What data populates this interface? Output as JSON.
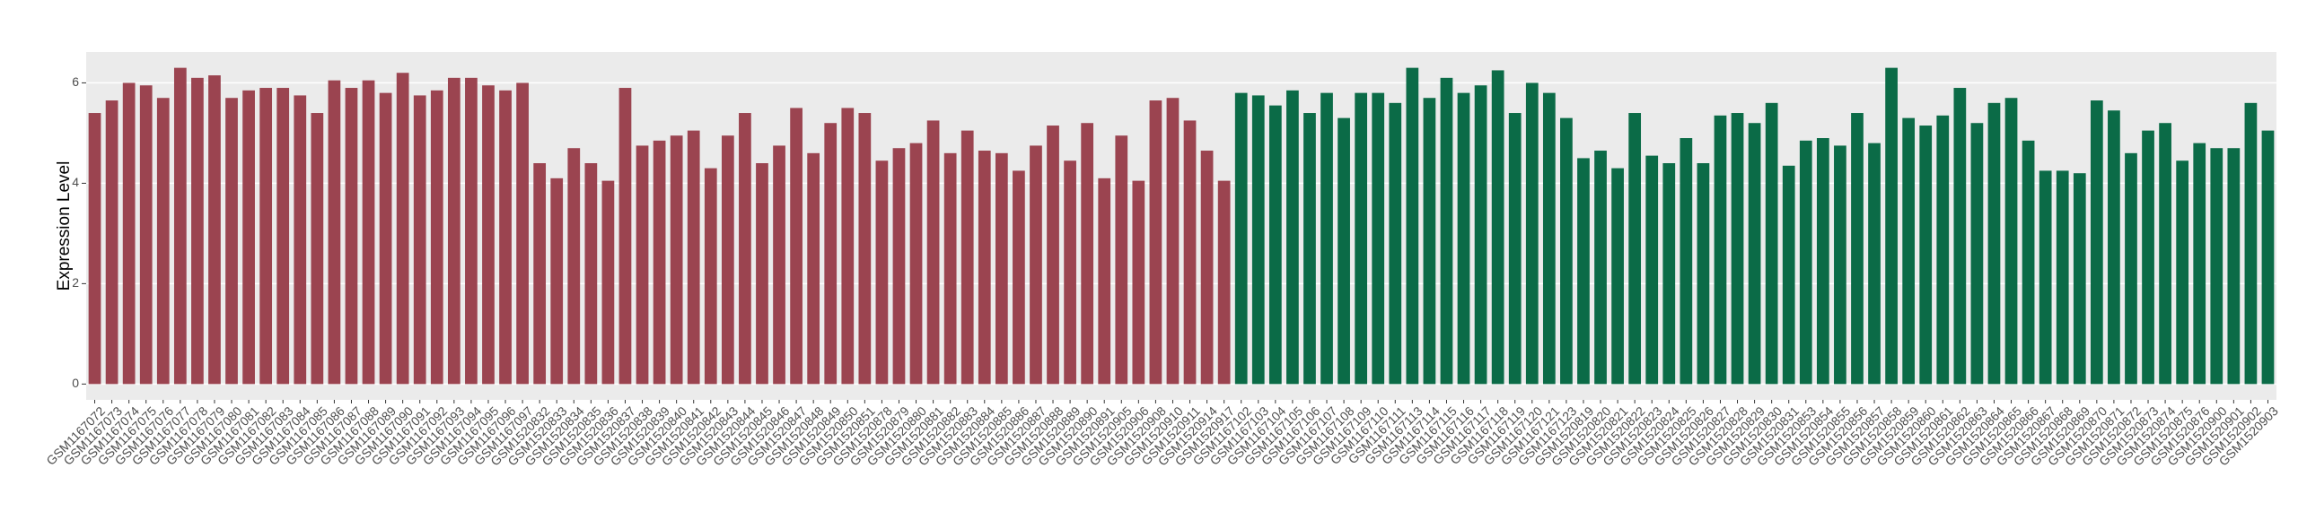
{
  "chart_data": {
    "type": "bar",
    "y_label": "Expression Level",
    "ylim": [
      -0.315,
      6.615
    ],
    "yticks": [
      0,
      2,
      4,
      6
    ],
    "grid": true,
    "series": [
      {
        "color": "#9b4450",
        "categories": [
          "GSM1167072",
          "GSM1167073",
          "GSM1167074",
          "GSM1167075",
          "GSM1167076",
          "GSM1167077",
          "GSM1167078",
          "GSM1167079",
          "GSM1167080",
          "GSM1167081",
          "GSM1167082",
          "GSM1167083",
          "GSM1167084",
          "GSM1167085",
          "GSM1167086",
          "GSM1167087",
          "GSM1167088",
          "GSM1167089",
          "GSM1167090",
          "GSM1167091",
          "GSM1167092",
          "GSM1167093",
          "GSM1167094",
          "GSM1167095",
          "GSM1167096",
          "GSM1167097",
          "GSM1520832",
          "GSM1520833",
          "GSM1520834",
          "GSM1520835",
          "GSM1520836",
          "GSM1520837",
          "GSM1520838",
          "GSM1520839",
          "GSM1520840",
          "GSM1520841",
          "GSM1520842",
          "GSM1520843",
          "GSM1520844",
          "GSM1520845",
          "GSM1520846",
          "GSM1520847",
          "GSM1520848",
          "GSM1520849",
          "GSM1520850",
          "GSM1520851",
          "GSM1520878",
          "GSM1520879",
          "GSM1520880",
          "GSM1520881",
          "GSM1520882",
          "GSM1520883",
          "GSM1520884",
          "GSM1520885",
          "GSM1520886",
          "GSM1520887",
          "GSM1520888",
          "GSM1520889",
          "GSM1520890",
          "GSM1520891",
          "GSM1520905",
          "GSM1520906",
          "GSM1520908",
          "GSM1520910",
          "GSM1520911",
          "GSM1520914",
          "GSM1520917"
        ],
        "values": [
          5.4,
          5.65,
          6.0,
          5.95,
          5.7,
          6.3,
          6.1,
          6.15,
          5.7,
          5.85,
          5.9,
          5.9,
          5.75,
          5.4,
          6.05,
          5.9,
          6.05,
          5.8,
          6.2,
          5.75,
          5.85,
          6.1,
          6.1,
          5.95,
          5.85,
          6.0,
          4.4,
          4.1,
          4.7,
          4.4,
          4.05,
          5.9,
          4.75,
          4.85,
          4.95,
          5.05,
          4.3,
          4.95,
          5.4,
          4.4,
          4.75,
          5.5,
          4.6,
          5.2,
          5.5,
          5.4,
          4.45,
          4.7,
          4.8,
          5.25,
          4.6,
          5.05,
          4.65,
          4.6,
          4.25,
          4.75,
          5.15,
          4.45,
          5.2,
          4.1,
          4.95,
          4.05,
          5.65,
          5.7,
          5.25,
          4.65,
          4.05
        ]
      },
      {
        "color": "#0b6b47",
        "categories": [
          "GSM1167102",
          "GSM1167103",
          "GSM1167104",
          "GSM1167105",
          "GSM1167106",
          "GSM1167107",
          "GSM1167108",
          "GSM1167109",
          "GSM1167110",
          "GSM1167111",
          "GSM1167113",
          "GSM1167114",
          "GSM1167115",
          "GSM1167116",
          "GSM1167117",
          "GSM1167118",
          "GSM1167119",
          "GSM1167120",
          "GSM1167121",
          "GSM1167123",
          "GSM1520819",
          "GSM1520820",
          "GSM1520821",
          "GSM1520822",
          "GSM1520823",
          "GSM1520824",
          "GSM1520825",
          "GSM1520826",
          "GSM1520827",
          "GSM1520828",
          "GSM1520829",
          "GSM1520830",
          "GSM1520831",
          "GSM1520853",
          "GSM1520854",
          "GSM1520855",
          "GSM1520856",
          "GSM1520857",
          "GSM1520858",
          "GSM1520859",
          "GSM1520860",
          "GSM1520861",
          "GSM1520862",
          "GSM1520863",
          "GSM1520864",
          "GSM1520865",
          "GSM1520866",
          "GSM1520867",
          "GSM1520868",
          "GSM1520869",
          "GSM1520870",
          "GSM1520871",
          "GSM1520872",
          "GSM1520873",
          "GSM1520874",
          "GSM1520875",
          "GSM1520876",
          "GSM1520900",
          "GSM1520901",
          "GSM1520902",
          "GSM1520903"
        ],
        "values": [
          5.8,
          5.75,
          5.55,
          5.85,
          5.4,
          5.8,
          5.3,
          5.8,
          5.8,
          5.6,
          6.3,
          5.7,
          6.1,
          5.8,
          5.95,
          6.25,
          5.4,
          6.0,
          5.8,
          5.3,
          4.5,
          4.65,
          4.3,
          5.4,
          4.55,
          4.4,
          4.9,
          4.4,
          5.35,
          5.4,
          5.2,
          5.6,
          4.35,
          4.85,
          4.9,
          4.75,
          5.4,
          4.8,
          6.3,
          5.3,
          5.15,
          5.35,
          5.9,
          5.2,
          5.6,
          5.7,
          4.85,
          4.25,
          4.25,
          4.2,
          5.65,
          5.45,
          4.6,
          5.05,
          5.2,
          4.45,
          4.8,
          4.7,
          4.7,
          5.6,
          5.05
        ]
      }
    ]
  }
}
